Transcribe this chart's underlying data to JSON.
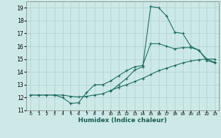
{
  "xlabel": "Humidex (Indice chaleur)",
  "bg_color": "#cce9e7",
  "grid_color": "#b0d4d0",
  "line_color": "#1a6b5e",
  "xlim": [
    -0.5,
    23.5
  ],
  "ylim": [
    11,
    19.5
  ],
  "yticks": [
    11,
    12,
    13,
    14,
    15,
    16,
    17,
    18,
    19
  ],
  "xticks": [
    0,
    1,
    2,
    3,
    4,
    5,
    6,
    7,
    8,
    9,
    10,
    11,
    12,
    13,
    14,
    15,
    16,
    17,
    18,
    19,
    20,
    21,
    22,
    23
  ],
  "line1_x": [
    0,
    1,
    2,
    3,
    4,
    5,
    6,
    7,
    8,
    9,
    10,
    11,
    12,
    13,
    14,
    15,
    16,
    17,
    18,
    19,
    20,
    21,
    22,
    23
  ],
  "line1_y": [
    12.2,
    12.2,
    12.2,
    12.2,
    12.0,
    11.55,
    11.6,
    12.4,
    13.0,
    13.0,
    13.3,
    13.7,
    14.1,
    14.4,
    14.5,
    16.2,
    16.2,
    16.0,
    15.8,
    15.9,
    15.9,
    15.7,
    14.9,
    14.7
  ],
  "line2_x": [
    0,
    1,
    2,
    3,
    4,
    5,
    6,
    7,
    8,
    9,
    10,
    11,
    12,
    13,
    14,
    15,
    16,
    17,
    18,
    19,
    20,
    21,
    22,
    23
  ],
  "line2_y": [
    12.2,
    12.2,
    12.2,
    12.2,
    12.2,
    12.1,
    12.05,
    12.1,
    12.2,
    12.3,
    12.55,
    12.8,
    13.0,
    13.25,
    13.5,
    13.8,
    14.1,
    14.3,
    14.5,
    14.7,
    14.85,
    14.95,
    15.0,
    15.0
  ],
  "line3_x": [
    10,
    11,
    12,
    13,
    14,
    15,
    16,
    17,
    18,
    19,
    20,
    21,
    22,
    23
  ],
  "line3_y": [
    12.5,
    13.0,
    13.5,
    14.15,
    14.4,
    19.1,
    19.0,
    18.35,
    17.1,
    17.0,
    16.0,
    15.7,
    15.0,
    14.75
  ]
}
